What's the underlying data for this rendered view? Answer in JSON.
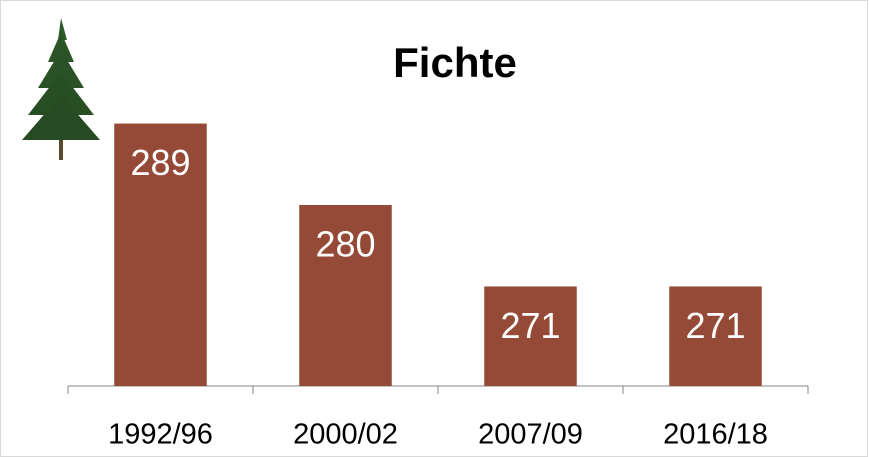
{
  "chart_data": {
    "type": "bar",
    "title": "Fichte",
    "categories": [
      "1992/96",
      "2000/02",
      "2007/09",
      "2016/18"
    ],
    "values": [
      289,
      280,
      271,
      271
    ],
    "color": "#954a37",
    "ylim": [
      260,
      300
    ]
  }
}
